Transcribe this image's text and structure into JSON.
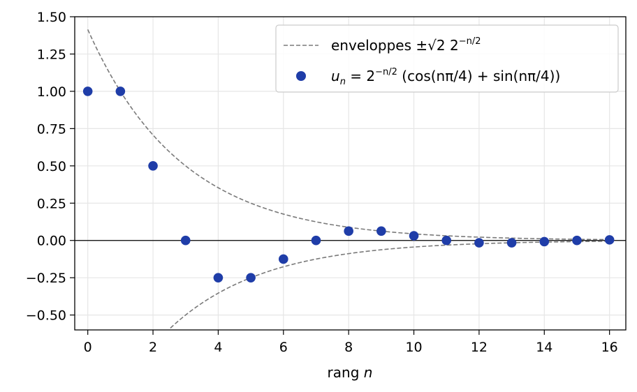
{
  "chart_data": {
    "type": "scatter",
    "title": "",
    "xlabel": {
      "text": "rang ",
      "var": "n"
    },
    "ylabel": "",
    "xlim": [
      -0.4,
      16.5
    ],
    "ylim": [
      -0.6,
      1.5
    ],
    "x_ticks": [
      "0",
      "2",
      "4",
      "6",
      "8",
      "10",
      "12",
      "14",
      "16"
    ],
    "x_tick_values": [
      0,
      2,
      4,
      6,
      8,
      10,
      12,
      14,
      16
    ],
    "y_ticks": [
      "1.50",
      "1.25",
      "1.00",
      "0.75",
      "0.50",
      "0.25",
      "0.00",
      "−0.25",
      "−0.50"
    ],
    "y_tick_values": [
      1.5,
      1.25,
      1.0,
      0.75,
      0.5,
      0.25,
      0.0,
      -0.25,
      -0.5
    ],
    "grid": true,
    "legend_position": "top-right",
    "points": {
      "x": [
        0,
        1,
        2,
        3,
        4,
        5,
        6,
        7,
        8,
        9,
        10,
        11,
        12,
        13,
        14,
        15,
        16
      ],
      "y": [
        1.0,
        1.0,
        0.5,
        0.0,
        -0.25,
        -0.25,
        -0.125,
        0.0,
        0.0625,
        0.0625,
        0.03125,
        0.0,
        -0.015625,
        -0.015625,
        -0.0078125,
        0.0,
        0.00390625
      ],
      "color": "#1f3da8"
    },
    "envelope": {
      "formula": "±sqrt(2)*2^(-n/2)",
      "x_range": [
        0,
        16
      ],
      "color": "#7a7a7a"
    },
    "legend": {
      "envelope_text": "enveloppes ±√2 2",
      "envelope_exp": "−n/2",
      "series_prefix": "u",
      "series_sub": "n",
      "series_eq": " = 2",
      "series_exp": "−n/2",
      "series_body": " (cos(nπ/4) + sin(nπ/4))"
    }
  }
}
